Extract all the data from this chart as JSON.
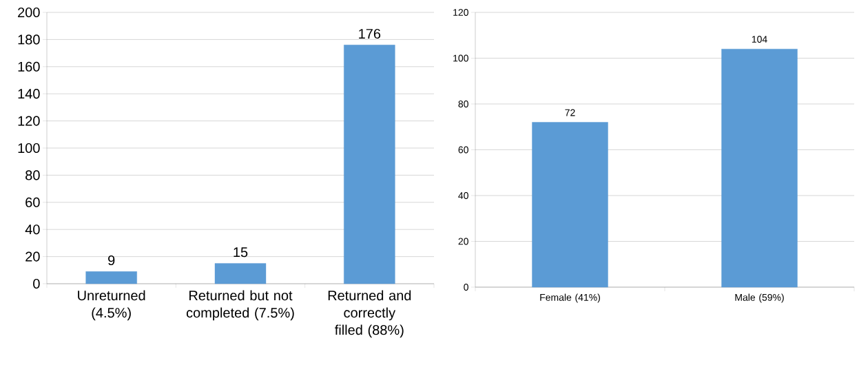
{
  "chart_data": [
    {
      "type": "bar",
      "categories": [
        "Unreturned (4.5%)",
        "Returned but not completed (7.5%)",
        "Returned and correctly filled (88%)"
      ],
      "values": [
        9,
        15,
        176
      ],
      "color": "#5b9bd5",
      "ylim": [
        0,
        200
      ],
      "yticks": [
        0,
        20,
        40,
        60,
        80,
        100,
        120,
        140,
        160,
        180,
        200
      ],
      "grid": "y",
      "data_labels": true
    },
    {
      "type": "bar",
      "categories": [
        "Female (41%)",
        "Male (59%)"
      ],
      "values": [
        72,
        104
      ],
      "color": "#5b9bd5",
      "ylim": [
        0,
        120
      ],
      "yticks": [
        0,
        20,
        40,
        60,
        80,
        100,
        120
      ],
      "grid": "y",
      "data_labels": true
    }
  ]
}
